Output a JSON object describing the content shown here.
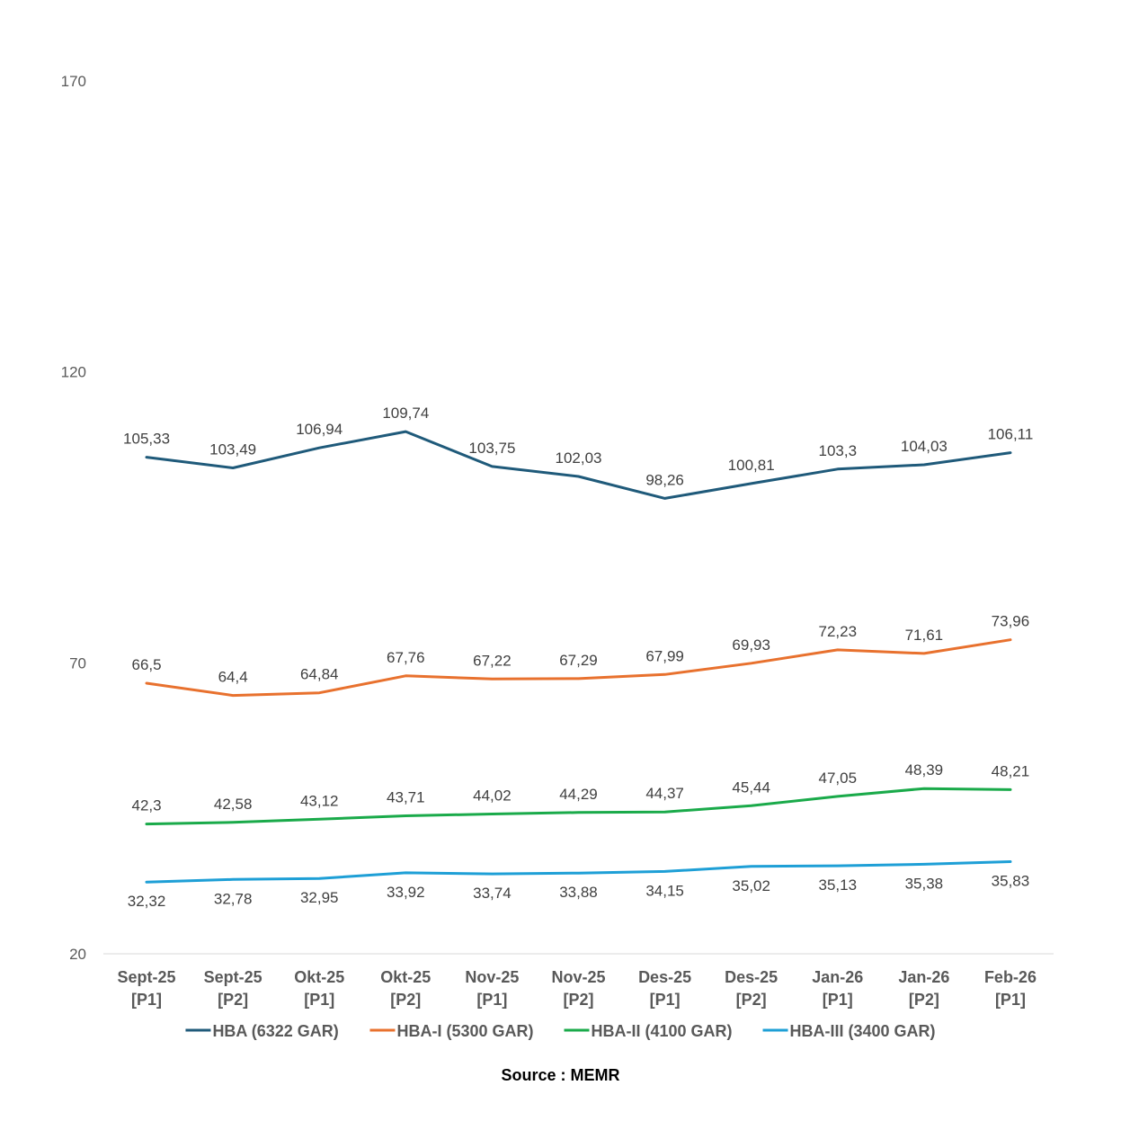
{
  "chart_data": {
    "type": "line",
    "categories": [
      [
        "Sept-25",
        "[P1]"
      ],
      [
        "Sept-25",
        "[P2]"
      ],
      [
        "Okt-25",
        "[P1]"
      ],
      [
        "Okt-25",
        "[P2]"
      ],
      [
        "Nov-25",
        "[P1]"
      ],
      [
        "Nov-25",
        "[P2]"
      ],
      [
        "Des-25",
        "[P1]"
      ],
      [
        "Des-25",
        "[P2]"
      ],
      [
        "Jan-26",
        "[P1]"
      ],
      [
        "Jan-26",
        "[P2]"
      ],
      [
        "Feb-26",
        "[P1]"
      ]
    ],
    "series": [
      {
        "name": "HBA (6322 GAR)",
        "color": "#1f5a7a",
        "label_pos": "above",
        "values": [
          105.33,
          103.49,
          106.94,
          109.74,
          103.75,
          102.03,
          98.26,
          100.81,
          103.3,
          104.03,
          106.11
        ],
        "labels": [
          "105,33",
          "103,49",
          "106,94",
          "109,74",
          "103,75",
          "102,03",
          "98,26",
          "100,81",
          "103,3",
          "104,03",
          "106,11"
        ]
      },
      {
        "name": "HBA-I (5300 GAR)",
        "color": "#e8712e",
        "label_pos": "above",
        "values": [
          66.5,
          64.4,
          64.84,
          67.76,
          67.22,
          67.29,
          67.99,
          69.93,
          72.23,
          71.61,
          73.96
        ],
        "labels": [
          "66,5",
          "64,4",
          "64,84",
          "67,76",
          "67,22",
          "67,29",
          "67,99",
          "69,93",
          "72,23",
          "71,61",
          "73,96"
        ]
      },
      {
        "name": "HBA-II (4100 GAR)",
        "color": "#1aaa4a",
        "label_pos": "above",
        "values": [
          42.3,
          42.58,
          43.12,
          43.71,
          44.02,
          44.29,
          44.37,
          45.44,
          47.05,
          48.39,
          48.21
        ],
        "labels": [
          "42,3",
          "42,58",
          "43,12",
          "43,71",
          "44,02",
          "44,29",
          "44,37",
          "45,44",
          "47,05",
          "48,39",
          "48,21"
        ]
      },
      {
        "name": "HBA-III (3400 GAR)",
        "color": "#1e9fd6",
        "label_pos": "below",
        "values": [
          32.32,
          32.78,
          32.95,
          33.92,
          33.74,
          33.88,
          34.15,
          35.02,
          35.13,
          35.38,
          35.83
        ],
        "labels": [
          "32,32",
          "32,78",
          "32,95",
          "33,92",
          "33,74",
          "33,88",
          "34,15",
          "35,02",
          "35,13",
          "35,38",
          "35,83"
        ]
      }
    ],
    "yticks": [
      "170",
      "120",
      "70",
      "20"
    ],
    "ylim": [
      20,
      170
    ],
    "grid": false,
    "legend_position": "bottom",
    "title": "",
    "xlabel": "",
    "ylabel": ""
  },
  "source": "Source : MEMR"
}
